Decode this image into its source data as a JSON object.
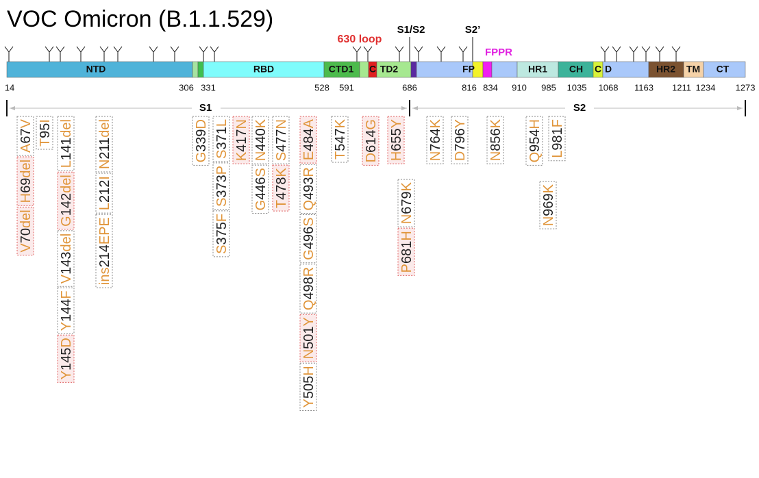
{
  "title": "VOC Omicron (B.1.1.529)",
  "top_labels": {
    "loop": "630 loop",
    "s1s2": "S1/S2",
    "s2prime": "S2’",
    "fppr": "FPPR"
  },
  "domains": [
    "NTD",
    "RBD",
    "CTD1",
    "C",
    "TD2",
    "FP",
    "HR1",
    "CH",
    "C",
    "D",
    "HR2",
    "TM",
    "CT"
  ],
  "positions": [
    14,
    306,
    331,
    528,
    591,
    686,
    816,
    834,
    910,
    985,
    1035,
    1068,
    1163,
    1211,
    1234,
    1273
  ],
  "regions": {
    "s1": "S1",
    "s2": "S2"
  },
  "mutation_columns": [
    [
      {
        "label": "A67V",
        "highlight": false
      },
      {
        "label": "H69del",
        "highlight": true
      },
      {
        "label": "V70del",
        "highlight": true
      }
    ],
    [
      {
        "label": "T95I",
        "highlight": false
      }
    ],
    [
      {
        "label": "L141del",
        "highlight": false
      },
      {
        "label": "G142del",
        "highlight": true
      },
      {
        "label": "V143del",
        "highlight": false
      },
      {
        "label": "Y144F",
        "highlight": false
      },
      {
        "label": "Y145D",
        "highlight": true
      }
    ],
    [
      {
        "label": "N211del",
        "highlight": false
      },
      {
        "label": "L212I",
        "highlight": false
      },
      {
        "label": "ins214EPE",
        "highlight": false
      }
    ],
    [
      {
        "label": "G339D",
        "highlight": false
      }
    ],
    [
      {
        "label": "S371L",
        "highlight": false
      },
      {
        "label": "S373P",
        "highlight": false
      },
      {
        "label": "S375F",
        "highlight": false
      }
    ],
    [
      {
        "label": "K417N",
        "highlight": true
      }
    ],
    [
      {
        "label": "N440K",
        "highlight": false
      },
      {
        "label": "G446S",
        "highlight": false
      }
    ],
    [
      {
        "label": "S477N",
        "highlight": false
      },
      {
        "label": "T478K",
        "highlight": true
      }
    ],
    [
      {
        "label": "E484A",
        "highlight": true
      },
      {
        "label": "Q493R",
        "highlight": false
      },
      {
        "label": "G496S",
        "highlight": false
      },
      {
        "label": "Q498R",
        "highlight": false
      },
      {
        "label": "N501Y",
        "highlight": true
      },
      {
        "label": "Y505H",
        "highlight": false
      }
    ],
    [
      {
        "label": "T547K",
        "highlight": false
      }
    ],
    [
      {
        "label": "D614G",
        "highlight": true
      }
    ],
    [
      {
        "label": "H655Y",
        "highlight": true
      }
    ],
    [
      {
        "label": "N679K",
        "highlight": false
      },
      {
        "label": "P681H",
        "highlight": true
      }
    ],
    [
      {
        "label": "N764K",
        "highlight": false
      }
    ],
    [
      {
        "label": "D796Y",
        "highlight": false
      }
    ],
    [
      {
        "label": "N856K",
        "highlight": false
      }
    ],
    [
      {
        "label": "Q954H",
        "highlight": false
      }
    ],
    [
      {
        "label": "N969K",
        "highlight": false
      }
    ],
    [
      {
        "label": "L981F",
        "highlight": false
      }
    ]
  ]
}
